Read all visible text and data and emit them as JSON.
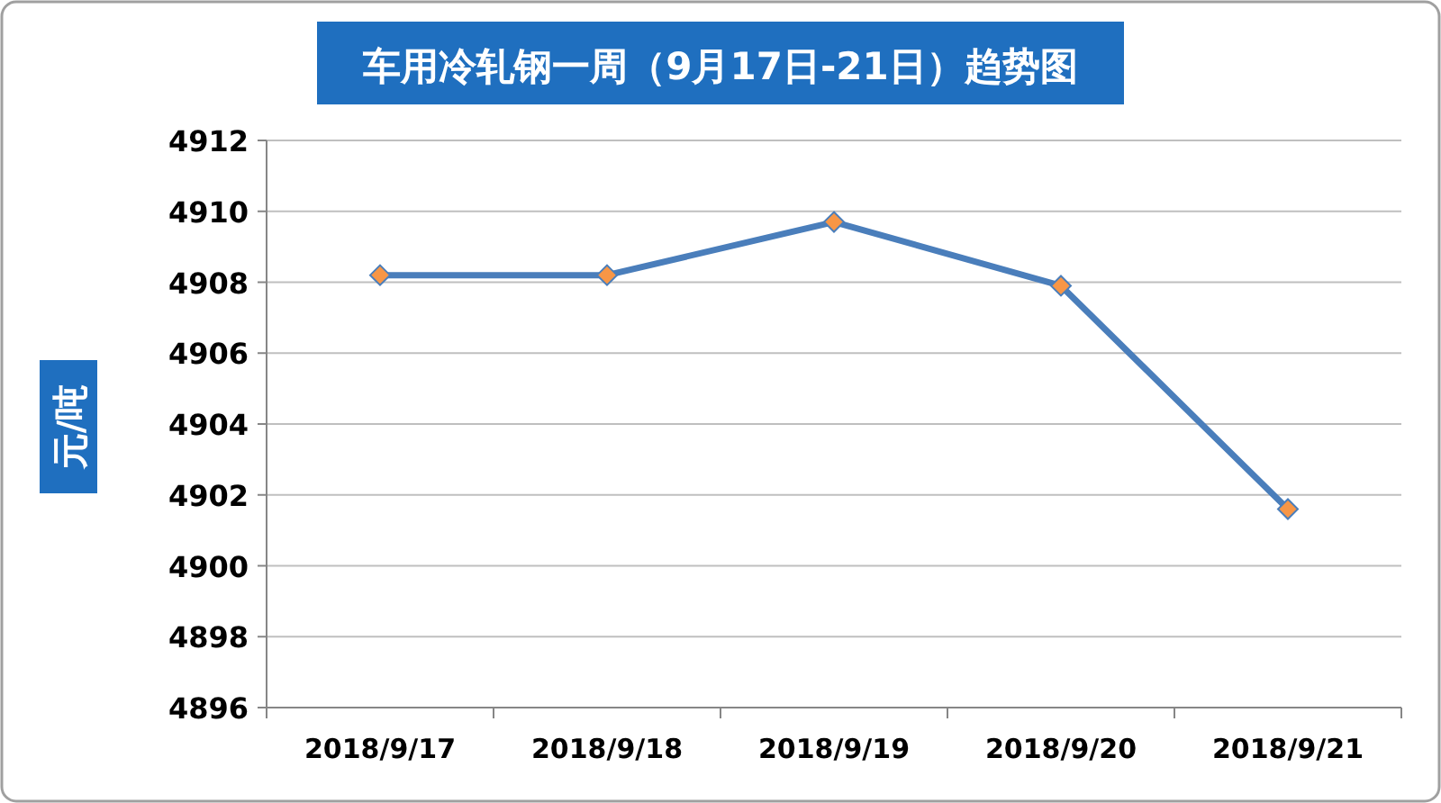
{
  "chart_data": {
    "type": "line",
    "title": "车用冷轧钢一周（9月17日-21日）趋势图",
    "ylabel": "元/吨",
    "categories": [
      "2018/9/17",
      "2018/9/18",
      "2018/9/19",
      "2018/9/20",
      "2018/9/21"
    ],
    "series": [
      {
        "color": "#4a7ebb",
        "values": [
          4908.2,
          4908.2,
          4909.7,
          4907.9,
          4901.6
        ]
      }
    ],
    "ylim": [
      4896,
      4912
    ],
    "yticks": [
      4896,
      4898,
      4900,
      4902,
      4904,
      4906,
      4908,
      4910,
      4912
    ],
    "grid": "y",
    "marker": "diamond",
    "line_style": "solid"
  }
}
